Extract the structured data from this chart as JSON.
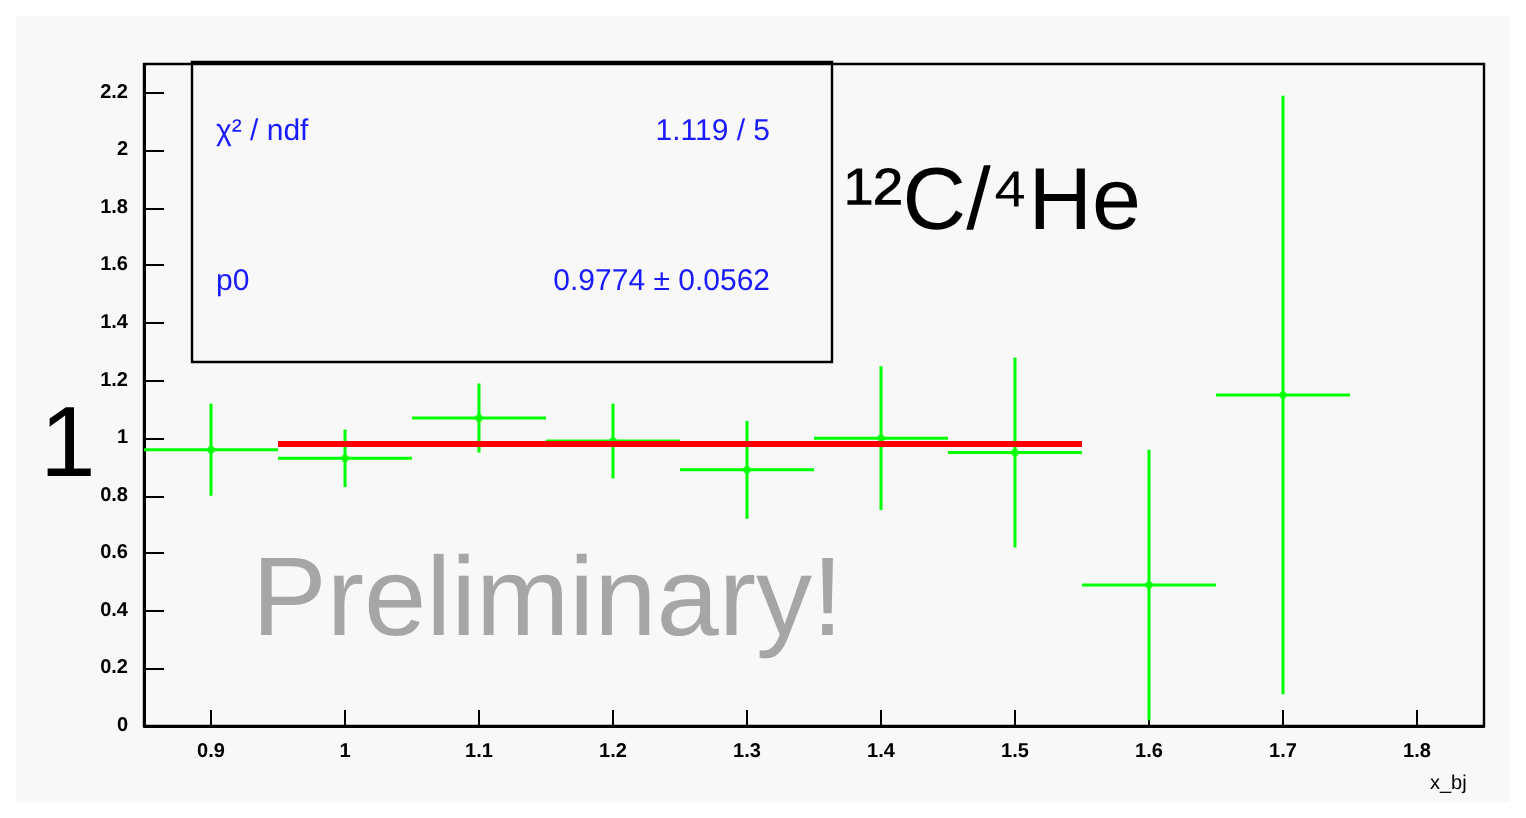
{
  "chart_data": {
    "type": "scatter",
    "xlabel": "x_bj",
    "annotations": [
      "χ² / ndf",
      "1.119 / 5",
      "p0",
      "0.9774 ± 0.0562",
      "¹²C/⁴He",
      "1",
      "Preliminary!"
    ],
    "x": [
      0.9,
      1.0,
      1.1,
      1.2,
      1.3,
      1.4,
      1.5,
      1.6,
      1.7
    ],
    "series": [
      {
        "color": "#00ff00",
        "values": [
          0.96,
          0.93,
          1.07,
          0.99,
          0.89,
          1.0,
          0.95,
          0.49,
          1.15
        ],
        "errors": [
          0.16,
          0.1,
          0.12,
          0.13,
          0.17,
          0.25,
          0.33,
          0.47,
          1.04
        ],
        "xerrors": [
          0.05,
          0.05,
          0.05,
          0.05,
          0.05,
          0.05,
          0.05,
          0.05,
          0.05
        ]
      },
      {
        "type": "line",
        "color": "#ff0000",
        "x": [
          0.95,
          1.55
        ],
        "values": [
          0.98,
          0.98
        ]
      }
    ],
    "xlim": [
      0.85,
      1.85
    ],
    "xticks": [
      0.9,
      1,
      1.1,
      1.2,
      1.3,
      1.4,
      1.5,
      1.6,
      1.7,
      1.8
    ],
    "ylim": [
      0,
      2.3
    ],
    "yticks": [
      0,
      0.2,
      0.4,
      0.6,
      0.8,
      1,
      1.2,
      1.4,
      1.6,
      1.8,
      2,
      2.2
    ],
    "grid": false
  }
}
